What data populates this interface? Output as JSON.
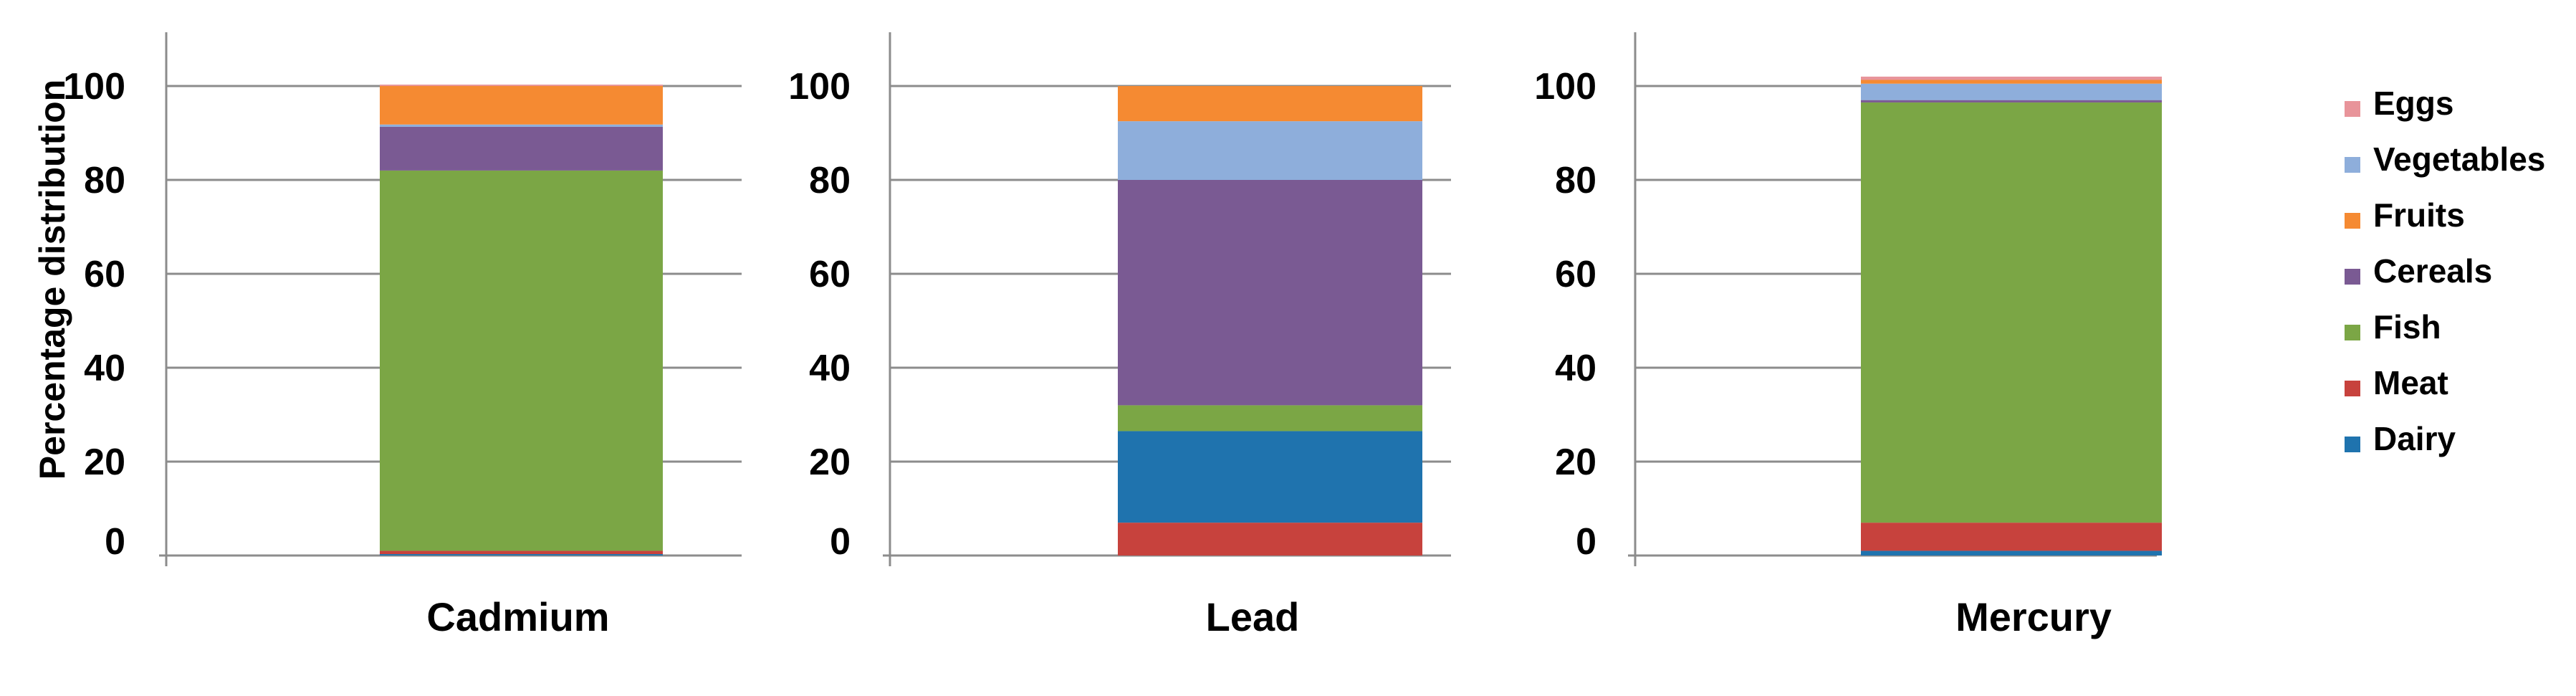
{
  "y_axis_label": "Percentage distribution",
  "legend": [
    {
      "label": "Eggs",
      "color": "#e8949a"
    },
    {
      "label": "Vegetables",
      "color": "#8eaedb"
    },
    {
      "label": "Fruits",
      "color": "#f58a32"
    },
    {
      "label": "Cereals",
      "color": "#7a5a93"
    },
    {
      "label": "Fish",
      "color": "#7ba645"
    },
    {
      "label": "Meat",
      "color": "#c7423d"
    },
    {
      "label": "Dairy",
      "color": "#1f73ae"
    }
  ],
  "chart_data": [
    {
      "type": "bar",
      "stacked": true,
      "categories": [
        "Cadmium"
      ],
      "ylabel": "Percentage distribution",
      "ylim": [
        0,
        100
      ],
      "yticks": [
        0,
        20,
        40,
        60,
        80,
        100
      ],
      "grid": true,
      "series": [
        {
          "name": "Dairy",
          "values": [
            0.3
          ]
        },
        {
          "name": "Meat",
          "values": [
            0.7
          ]
        },
        {
          "name": "Fish",
          "values": [
            81
          ]
        },
        {
          "name": "Cereals",
          "values": [
            9.3
          ]
        },
        {
          "name": "Vegetables",
          "values": [
            0.5
          ]
        },
        {
          "name": "Fruits",
          "values": [
            8.2
          ]
        },
        {
          "name": "Eggs",
          "values": [
            0.3
          ]
        }
      ]
    },
    {
      "type": "bar",
      "stacked": true,
      "categories": [
        "Lead"
      ],
      "ylim": [
        0,
        100
      ],
      "yticks": [
        0,
        20,
        40,
        60,
        80,
        100
      ],
      "grid": true,
      "series": [
        {
          "name": "Meat",
          "values": [
            7
          ]
        },
        {
          "name": "Dairy",
          "values": [
            19.5
          ]
        },
        {
          "name": "Fish",
          "values": [
            5.5
          ]
        },
        {
          "name": "Cereals",
          "values": [
            48
          ]
        },
        {
          "name": "Vegetables",
          "values": [
            12.5
          ]
        },
        {
          "name": "Fruits",
          "values": [
            7.5
          ]
        }
      ]
    },
    {
      "type": "bar",
      "stacked": true,
      "categories": [
        "Mercury"
      ],
      "ylim": [
        0,
        100
      ],
      "yticks": [
        0,
        20,
        40,
        60,
        80,
        100
      ],
      "grid": true,
      "legend_position": "right",
      "series": [
        {
          "name": "Dairy",
          "values": [
            1
          ]
        },
        {
          "name": "Meat",
          "values": [
            6
          ]
        },
        {
          "name": "Fish",
          "values": [
            89.5
          ]
        },
        {
          "name": "Cereals",
          "values": [
            0.5
          ]
        },
        {
          "name": "Vegetables",
          "values": [
            3.5
          ]
        },
        {
          "name": "Fruits",
          "values": [
            0.8
          ]
        },
        {
          "name": "Eggs",
          "values": [
            0.7
          ]
        }
      ]
    }
  ]
}
